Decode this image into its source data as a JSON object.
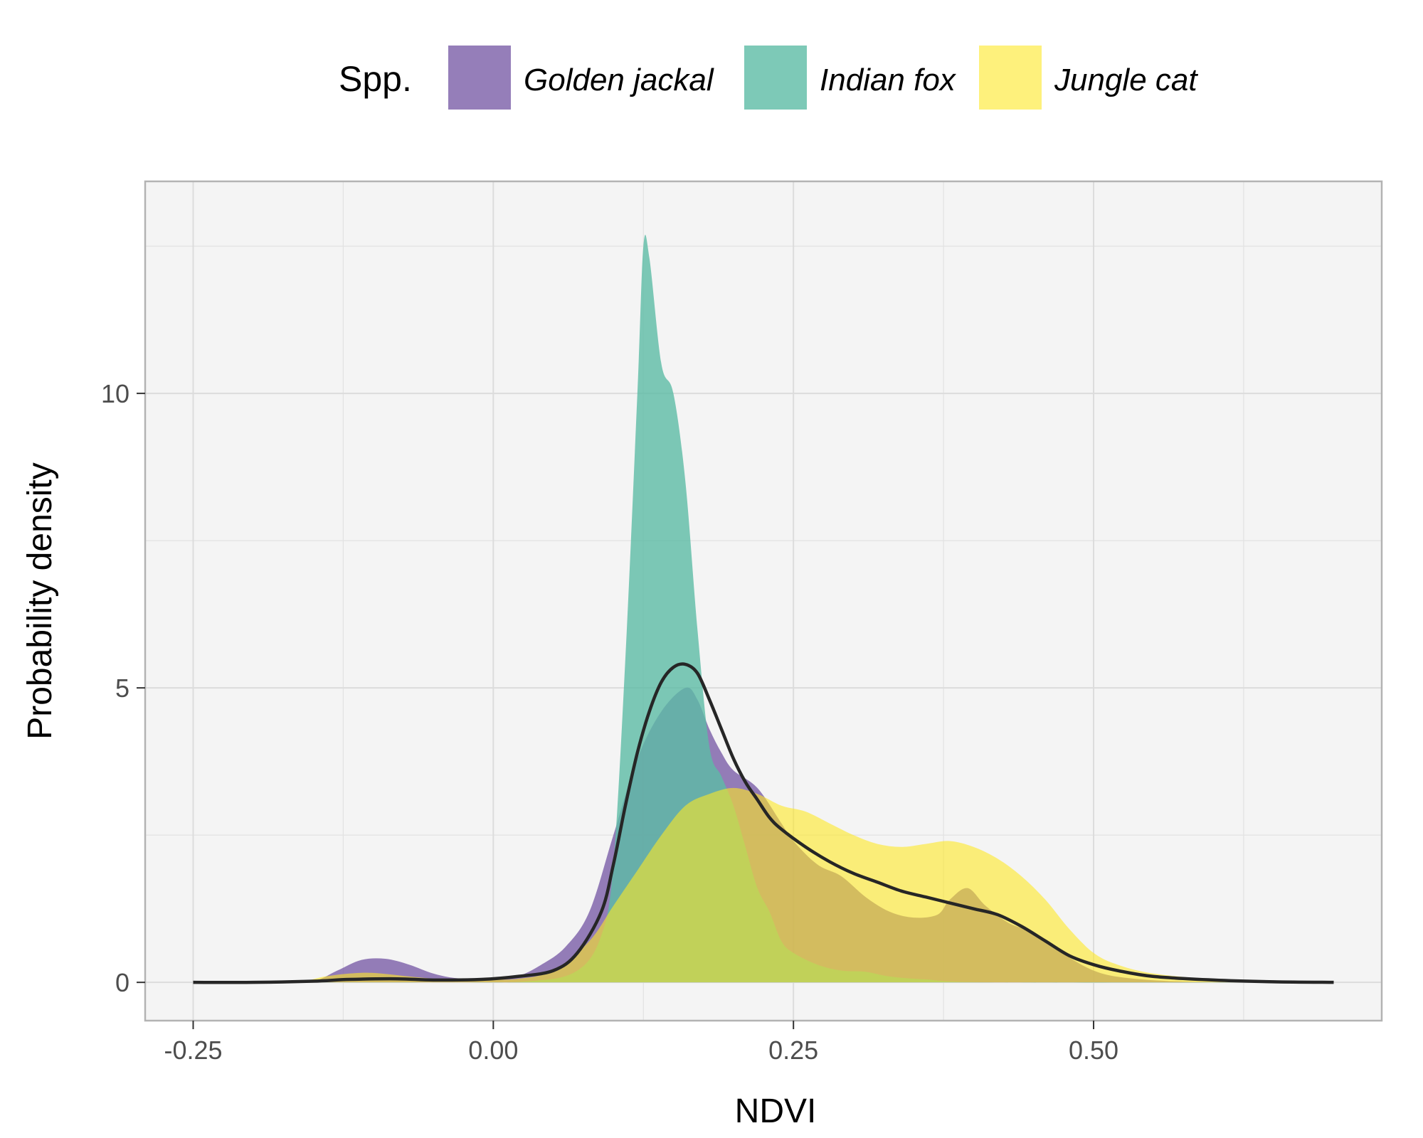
{
  "chart_data": {
    "type": "area",
    "xlabel": "NDVI",
    "ylabel": "Probability density",
    "xlim": [
      -0.29,
      0.74
    ],
    "ylim": [
      -0.65,
      13.6
    ],
    "x_ticks": [
      -0.25,
      0.0,
      0.25,
      0.5
    ],
    "x_tick_labels": [
      "-0.25",
      "0.00",
      "0.25",
      "0.50"
    ],
    "y_ticks": [
      0,
      5,
      10
    ],
    "y_tick_labels": [
      "0",
      "5",
      "10"
    ],
    "x_minor_gridlines": [
      -0.125,
      0.125,
      0.375,
      0.625
    ],
    "y_minor_gridlines": [
      2.5,
      7.5,
      12.5
    ],
    "grid": true,
    "legend": {
      "title": "Spp.",
      "placement": "top",
      "entries": [
        "Golden jackal",
        "Indian fox",
        "Jungle cat"
      ]
    },
    "series": [
      {
        "name": "Golden jackal",
        "color": "#7b5ea7",
        "opacity": 0.8,
        "points": [
          [
            -0.25,
            0
          ],
          [
            -0.18,
            0
          ],
          [
            -0.15,
            0.02
          ],
          [
            -0.13,
            0.2
          ],
          [
            -0.11,
            0.38
          ],
          [
            -0.09,
            0.4
          ],
          [
            -0.07,
            0.3
          ],
          [
            -0.05,
            0.15
          ],
          [
            -0.03,
            0.07
          ],
          [
            0.0,
            0.05
          ],
          [
            0.02,
            0.1
          ],
          [
            0.04,
            0.3
          ],
          [
            0.06,
            0.6
          ],
          [
            0.08,
            1.2
          ],
          [
            0.1,
            2.5
          ],
          [
            0.12,
            3.8
          ],
          [
            0.14,
            4.6
          ],
          [
            0.16,
            5.0
          ],
          [
            0.17,
            4.8
          ],
          [
            0.18,
            4.3
          ],
          [
            0.19,
            3.9
          ],
          [
            0.2,
            3.6
          ],
          [
            0.22,
            3.3
          ],
          [
            0.24,
            2.7
          ],
          [
            0.25,
            2.4
          ],
          [
            0.27,
            2.0
          ],
          [
            0.29,
            1.8
          ],
          [
            0.31,
            1.45
          ],
          [
            0.33,
            1.2
          ],
          [
            0.35,
            1.1
          ],
          [
            0.37,
            1.15
          ],
          [
            0.38,
            1.4
          ],
          [
            0.395,
            1.6
          ],
          [
            0.41,
            1.3
          ],
          [
            0.43,
            1.0
          ],
          [
            0.45,
            0.85
          ],
          [
            0.47,
            0.55
          ],
          [
            0.5,
            0.2
          ],
          [
            0.53,
            0.07
          ],
          [
            0.58,
            0.01
          ],
          [
            0.65,
            0
          ]
        ]
      },
      {
        "name": "Indian fox",
        "color": "#5dbba5",
        "opacity": 0.8,
        "points": [
          [
            -0.25,
            0
          ],
          [
            -0.05,
            0
          ],
          [
            0.03,
            0.02
          ],
          [
            0.07,
            0.2
          ],
          [
            0.09,
            0.8
          ],
          [
            0.1,
            2.0
          ],
          [
            0.11,
            5.5
          ],
          [
            0.12,
            10.0
          ],
          [
            0.125,
            12.5
          ],
          [
            0.13,
            12.3
          ],
          [
            0.14,
            10.5
          ],
          [
            0.15,
            10.0
          ],
          [
            0.16,
            8.5
          ],
          [
            0.17,
            6.0
          ],
          [
            0.18,
            4.0
          ],
          [
            0.19,
            3.5
          ],
          [
            0.2,
            3.0
          ],
          [
            0.21,
            2.3
          ],
          [
            0.22,
            1.6
          ],
          [
            0.23,
            1.2
          ],
          [
            0.24,
            0.7
          ],
          [
            0.25,
            0.5
          ],
          [
            0.27,
            0.3
          ],
          [
            0.29,
            0.2
          ],
          [
            0.31,
            0.18
          ],
          [
            0.33,
            0.1
          ],
          [
            0.36,
            0.05
          ],
          [
            0.42,
            0
          ],
          [
            0.7,
            0
          ]
        ]
      },
      {
        "name": "Jungle cat",
        "color": "#fde725",
        "opacity": 0.6,
        "points": [
          [
            -0.25,
            0
          ],
          [
            -0.17,
            0
          ],
          [
            -0.14,
            0.1
          ],
          [
            -0.12,
            0.15
          ],
          [
            -0.1,
            0.16
          ],
          [
            -0.07,
            0.1
          ],
          [
            -0.04,
            0.05
          ],
          [
            -0.01,
            0.05
          ],
          [
            0.02,
            0.06
          ],
          [
            0.05,
            0.2
          ],
          [
            0.08,
            0.7
          ],
          [
            0.1,
            1.3
          ],
          [
            0.12,
            1.9
          ],
          [
            0.14,
            2.5
          ],
          [
            0.16,
            3.0
          ],
          [
            0.18,
            3.2
          ],
          [
            0.2,
            3.3
          ],
          [
            0.22,
            3.2
          ],
          [
            0.24,
            3.0
          ],
          [
            0.26,
            2.9
          ],
          [
            0.28,
            2.7
          ],
          [
            0.3,
            2.5
          ],
          [
            0.32,
            2.35
          ],
          [
            0.34,
            2.3
          ],
          [
            0.36,
            2.35
          ],
          [
            0.38,
            2.4
          ],
          [
            0.4,
            2.3
          ],
          [
            0.42,
            2.1
          ],
          [
            0.44,
            1.8
          ],
          [
            0.46,
            1.4
          ],
          [
            0.48,
            0.9
          ],
          [
            0.5,
            0.5
          ],
          [
            0.52,
            0.3
          ],
          [
            0.55,
            0.15
          ],
          [
            0.6,
            0.05
          ],
          [
            0.65,
            0.01
          ],
          [
            0.7,
            0
          ]
        ]
      },
      {
        "name": "",
        "type": "line",
        "color": "#262626",
        "points": [
          [
            -0.25,
            0
          ],
          [
            -0.2,
            0
          ],
          [
            -0.15,
            0.02
          ],
          [
            -0.12,
            0.05
          ],
          [
            -0.08,
            0.06
          ],
          [
            -0.05,
            0.04
          ],
          [
            -0.01,
            0.05
          ],
          [
            0.02,
            0.1
          ],
          [
            0.05,
            0.2
          ],
          [
            0.07,
            0.5
          ],
          [
            0.09,
            1.2
          ],
          [
            0.1,
            2.0
          ],
          [
            0.11,
            3.0
          ],
          [
            0.12,
            3.9
          ],
          [
            0.13,
            4.6
          ],
          [
            0.14,
            5.1
          ],
          [
            0.15,
            5.35
          ],
          [
            0.16,
            5.4
          ],
          [
            0.17,
            5.25
          ],
          [
            0.18,
            4.8
          ],
          [
            0.19,
            4.3
          ],
          [
            0.2,
            3.8
          ],
          [
            0.21,
            3.4
          ],
          [
            0.22,
            3.1
          ],
          [
            0.23,
            2.8
          ],
          [
            0.24,
            2.6
          ],
          [
            0.26,
            2.3
          ],
          [
            0.28,
            2.05
          ],
          [
            0.3,
            1.85
          ],
          [
            0.32,
            1.7
          ],
          [
            0.34,
            1.55
          ],
          [
            0.36,
            1.45
          ],
          [
            0.38,
            1.35
          ],
          [
            0.4,
            1.25
          ],
          [
            0.42,
            1.15
          ],
          [
            0.44,
            0.95
          ],
          [
            0.46,
            0.7
          ],
          [
            0.48,
            0.45
          ],
          [
            0.5,
            0.3
          ],
          [
            0.52,
            0.2
          ],
          [
            0.55,
            0.1
          ],
          [
            0.6,
            0.04
          ],
          [
            0.65,
            0.01
          ],
          [
            0.7,
            0
          ]
        ]
      }
    ]
  }
}
